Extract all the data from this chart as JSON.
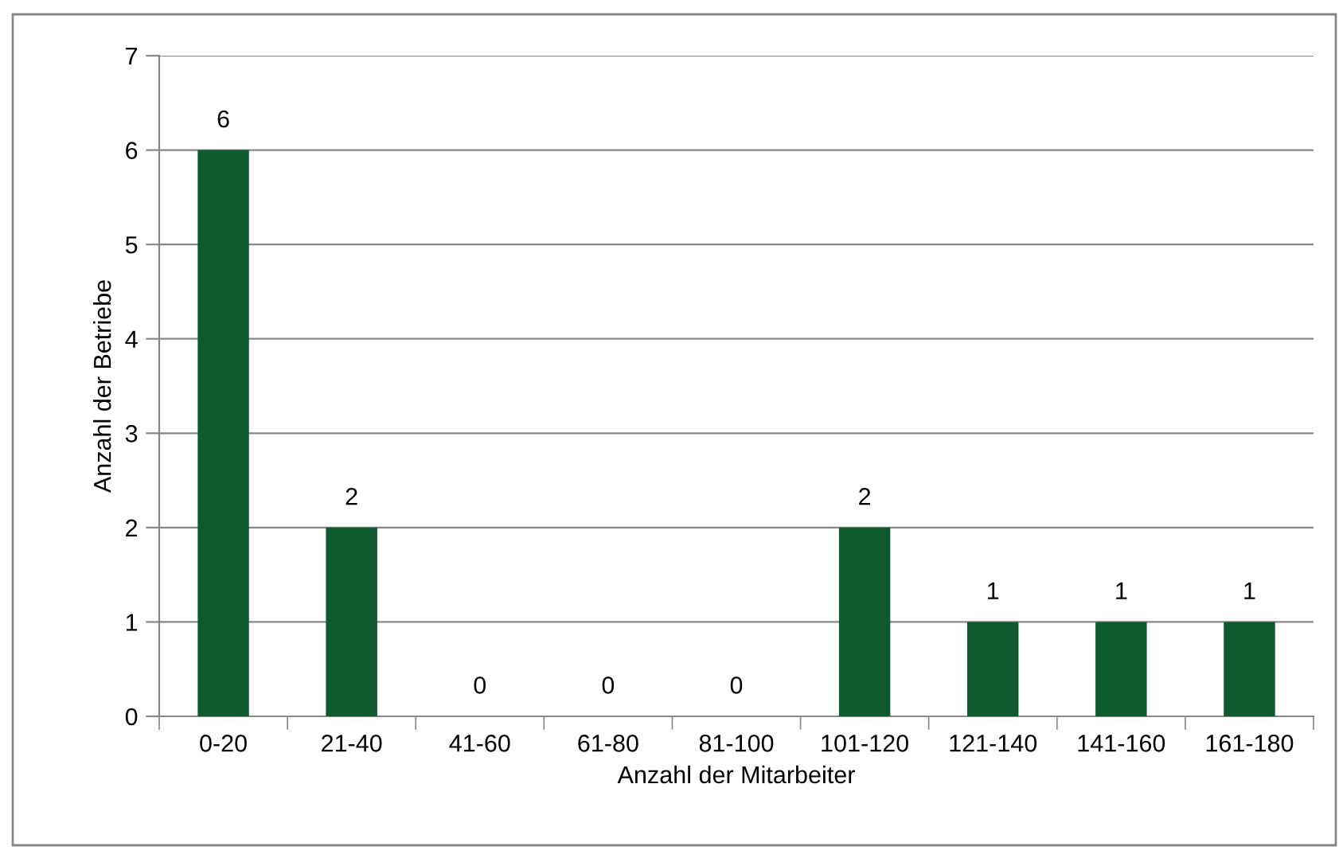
{
  "chart_data": {
    "type": "bar",
    "xlabel": "Anzahl der Mitarbeiter",
    "ylabel": "Anzahl der Betriebe",
    "categories": [
      "0-20",
      "21-40",
      "41-60",
      "61-80",
      "81-100",
      "101-120",
      "121-140",
      "141-160",
      "161-180"
    ],
    "values": [
      6,
      2,
      0,
      0,
      0,
      2,
      1,
      1,
      1
    ],
    "color": "#105a30",
    "ylim": [
      0,
      7
    ],
    "yticks": [
      0,
      1,
      2,
      3,
      4,
      5,
      6,
      7
    ],
    "grid": "y",
    "data_labels": true
  }
}
